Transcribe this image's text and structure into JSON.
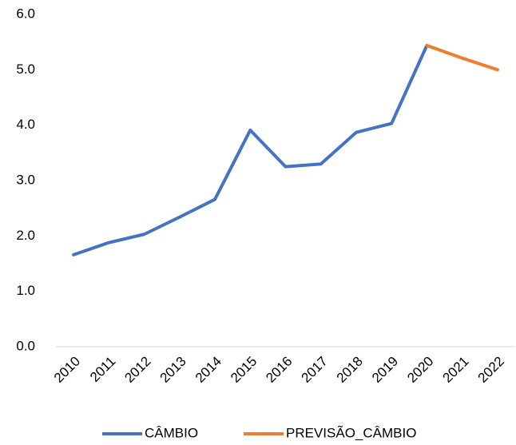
{
  "chart_data": {
    "type": "line",
    "categories": [
      "2010",
      "2011",
      "2012",
      "2013",
      "2014",
      "2015",
      "2016",
      "2017",
      "2018",
      "2019",
      "2020",
      "2021",
      "2022"
    ],
    "series": [
      {
        "name": "CÂMBIO",
        "color": "#4472c4",
        "values": [
          1.66,
          1.88,
          2.03,
          2.34,
          2.66,
          3.91,
          3.25,
          3.3,
          3.87,
          4.03,
          5.44,
          null,
          null
        ]
      },
      {
        "name": "PREVISÃO_CÂMBIO",
        "color": "#ed7d31",
        "values": [
          null,
          null,
          null,
          null,
          null,
          null,
          null,
          null,
          null,
          null,
          5.44,
          5.21,
          5.0
        ]
      }
    ],
    "ylim": [
      0,
      6
    ],
    "yticks": [
      {
        "value": 0,
        "label": "0.0"
      },
      {
        "value": 1,
        "label": "1.0"
      },
      {
        "value": 2,
        "label": "2.0"
      },
      {
        "value": 3,
        "label": "3.0"
      },
      {
        "value": 4,
        "label": "4.0"
      },
      {
        "value": 5,
        "label": "5.0"
      },
      {
        "value": 6,
        "label": "6.0"
      }
    ],
    "grid": false,
    "legend": "bottom"
  }
}
